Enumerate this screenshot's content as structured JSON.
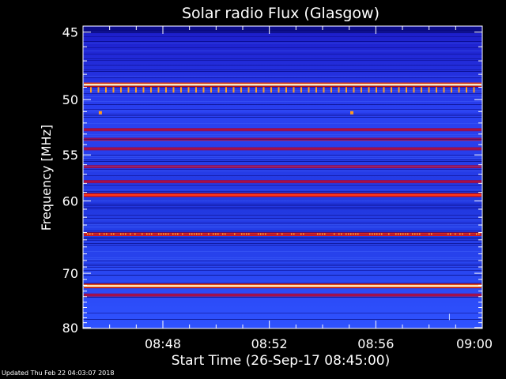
{
  "updated_text": "Updated Thu Feb 22 04:03:07 2018",
  "chart_data": {
    "type": "heatmap",
    "title": "Solar radio Flux (Glasgow)",
    "xlabel": "Start Time (26-Sep-17 08:45:00)",
    "ylabel": "Frequency [MHz]",
    "x_tick_labels": [
      "08:48",
      "08:52",
      "08:56",
      "09:00"
    ],
    "x_ticks_minutes": [
      3,
      7,
      11,
      15
    ],
    "xlim_minutes": [
      0,
      15
    ],
    "y_tick_labels": [
      "45",
      "50",
      "55",
      "60",
      "70",
      "80"
    ],
    "y_ticks_mhz": [
      45,
      50,
      55,
      60,
      70,
      80
    ],
    "ylim": [
      44.6,
      80.2
    ],
    "y_scale": "reciprocal",
    "grid": false,
    "colormap": [
      "#000000",
      "#0a0aa0",
      "#1f3cff",
      "#b00020",
      "#ff2010",
      "#ffb020",
      "#ffffff"
    ],
    "emission_bands": [
      {
        "freq_mhz": 48.8,
        "level": "saturated"
      },
      {
        "freq_mhz": 52.6,
        "level": "moderate"
      },
      {
        "freq_mhz": 53.5,
        "level": "moderate"
      },
      {
        "freq_mhz": 54.4,
        "level": "moderate"
      },
      {
        "freq_mhz": 56.2,
        "level": "moderate"
      },
      {
        "freq_mhz": 57.8,
        "level": "moderate"
      },
      {
        "freq_mhz": 59.3,
        "level": "strong"
      },
      {
        "freq_mhz": 64.2,
        "level": "strong"
      },
      {
        "freq_mhz": 72.1,
        "level": "saturated"
      },
      {
        "freq_mhz": 73.7,
        "level": "moderate"
      }
    ]
  }
}
